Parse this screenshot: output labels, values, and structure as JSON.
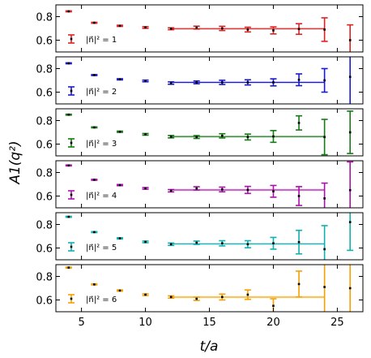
{
  "chart_data": {
    "type": "scatter",
    "xlabel": "t/a",
    "ylabel": "A1(q²)",
    "xlim": [
      3,
      27
    ],
    "ylim": [
      0.5,
      0.9
    ],
    "x_ticks": [
      "5",
      "10",
      "15",
      "20",
      "25"
    ],
    "y_ticks": [
      "0.6",
      "0.8"
    ],
    "panels": [
      {
        "label": "|n⃗|² = 1",
        "color": "#dd2222",
        "band": {
          "x": [
            12,
            24
          ],
          "center": 0.697,
          "half_width": 0.009
        },
        "points": [
          {
            "x": 4,
            "y": 0.845,
            "err": 0.004
          },
          {
            "x": 6,
            "y": 0.748,
            "err": 0.004
          },
          {
            "x": 8,
            "y": 0.722,
            "err": 0.005
          },
          {
            "x": 10,
            "y": 0.708,
            "err": 0.007
          },
          {
            "x": 12,
            "y": 0.697,
            "err": 0.008
          },
          {
            "x": 14,
            "y": 0.707,
            "err": 0.012
          },
          {
            "x": 16,
            "y": 0.7,
            "err": 0.018
          },
          {
            "x": 18,
            "y": 0.69,
            "err": 0.02
          },
          {
            "x": 20,
            "y": 0.683,
            "err": 0.03
          },
          {
            "x": 22,
            "y": 0.695,
            "err": 0.045
          },
          {
            "x": 24,
            "y": 0.69,
            "err": 0.1
          },
          {
            "x": 26,
            "y": 0.6,
            "err": 0.13
          }
        ]
      },
      {
        "label": "|n⃗|² = 2",
        "color": "#1a1acc",
        "band": {
          "x": [
            12,
            24
          ],
          "center": 0.683,
          "half_width": 0.009
        },
        "points": [
          {
            "x": 4,
            "y": 0.845,
            "err": 0.004
          },
          {
            "x": 6,
            "y": 0.745,
            "err": 0.004
          },
          {
            "x": 8,
            "y": 0.709,
            "err": 0.005
          },
          {
            "x": 10,
            "y": 0.695,
            "err": 0.007
          },
          {
            "x": 12,
            "y": 0.677,
            "err": 0.01
          },
          {
            "x": 14,
            "y": 0.683,
            "err": 0.012
          },
          {
            "x": 16,
            "y": 0.683,
            "err": 0.018
          },
          {
            "x": 18,
            "y": 0.683,
            "err": 0.022
          },
          {
            "x": 20,
            "y": 0.683,
            "err": 0.03
          },
          {
            "x": 22,
            "y": 0.705,
            "err": 0.05
          },
          {
            "x": 24,
            "y": 0.7,
            "err": 0.1
          },
          {
            "x": 26,
            "y": 0.73,
            "err": 0.24
          }
        ]
      },
      {
        "label": "|n⃗|² = 3",
        "color": "#167a16",
        "band": {
          "x": [
            12,
            24
          ],
          "center": 0.664,
          "half_width": 0.009
        },
        "points": [
          {
            "x": 4,
            "y": 0.85,
            "err": 0.004
          },
          {
            "x": 6,
            "y": 0.742,
            "err": 0.004
          },
          {
            "x": 8,
            "y": 0.705,
            "err": 0.005
          },
          {
            "x": 10,
            "y": 0.683,
            "err": 0.007
          },
          {
            "x": 12,
            "y": 0.663,
            "err": 0.01
          },
          {
            "x": 14,
            "y": 0.66,
            "err": 0.012
          },
          {
            "x": 16,
            "y": 0.67,
            "err": 0.018
          },
          {
            "x": 18,
            "y": 0.66,
            "err": 0.025
          },
          {
            "x": 20,
            "y": 0.665,
            "err": 0.05
          },
          {
            "x": 22,
            "y": 0.78,
            "err": 0.06
          },
          {
            "x": 24,
            "y": 0.66,
            "err": 0.15
          },
          {
            "x": 26,
            "y": 0.7,
            "err": 0.18
          }
        ]
      },
      {
        "label": "|n⃗|² = 4",
        "color": "#aa11aa",
        "band": {
          "x": [
            12,
            24
          ],
          "center": 0.652,
          "half_width": 0.009
        },
        "points": [
          {
            "x": 4,
            "y": 0.86,
            "err": 0.004
          },
          {
            "x": 6,
            "y": 0.738,
            "err": 0.004
          },
          {
            "x": 8,
            "y": 0.693,
            "err": 0.005
          },
          {
            "x": 10,
            "y": 0.665,
            "err": 0.007
          },
          {
            "x": 12,
            "y": 0.645,
            "err": 0.01
          },
          {
            "x": 14,
            "y": 0.665,
            "err": 0.014
          },
          {
            "x": 16,
            "y": 0.656,
            "err": 0.02
          },
          {
            "x": 18,
            "y": 0.652,
            "err": 0.03
          },
          {
            "x": 20,
            "y": 0.64,
            "err": 0.05
          },
          {
            "x": 22,
            "y": 0.6,
            "err": 0.08
          },
          {
            "x": 24,
            "y": 0.58,
            "err": 0.13
          },
          {
            "x": 26,
            "y": 0.65,
            "err": 0.24
          }
        ]
      },
      {
        "label": "|n⃗|² = 5",
        "color": "#10b0b0",
        "band": {
          "x": [
            12,
            24
          ],
          "center": 0.635,
          "half_width": 0.009
        },
        "points": [
          {
            "x": 4,
            "y": 0.865,
            "err": 0.004
          },
          {
            "x": 6,
            "y": 0.735,
            "err": 0.004
          },
          {
            "x": 8,
            "y": 0.682,
            "err": 0.005
          },
          {
            "x": 10,
            "y": 0.652,
            "err": 0.007
          },
          {
            "x": 12,
            "y": 0.632,
            "err": 0.01
          },
          {
            "x": 14,
            "y": 0.645,
            "err": 0.014
          },
          {
            "x": 16,
            "y": 0.64,
            "err": 0.022
          },
          {
            "x": 18,
            "y": 0.632,
            "err": 0.03
          },
          {
            "x": 20,
            "y": 0.64,
            "err": 0.05
          },
          {
            "x": 22,
            "y": 0.65,
            "err": 0.1
          },
          {
            "x": 24,
            "y": 0.59,
            "err": 0.2
          },
          {
            "x": 26,
            "y": 0.82,
            "err": 0.24
          }
        ]
      },
      {
        "label": "|n⃗|² = 6",
        "color": "#f5a000",
        "band": {
          "x": [
            12,
            24
          ],
          "center": 0.624,
          "half_width": 0.009
        },
        "points": [
          {
            "x": 4,
            "y": 0.875,
            "err": 0.004
          },
          {
            "x": 6,
            "y": 0.732,
            "err": 0.004
          },
          {
            "x": 8,
            "y": 0.68,
            "err": 0.005
          },
          {
            "x": 10,
            "y": 0.645,
            "err": 0.007
          },
          {
            "x": 12,
            "y": 0.625,
            "err": 0.01
          },
          {
            "x": 14,
            "y": 0.61,
            "err": 0.014
          },
          {
            "x": 16,
            "y": 0.625,
            "err": 0.025
          },
          {
            "x": 18,
            "y": 0.645,
            "err": 0.04
          },
          {
            "x": 20,
            "y": 0.55,
            "err": 0.06
          },
          {
            "x": 22,
            "y": 0.735,
            "err": 0.11
          },
          {
            "x": 24,
            "y": 0.71,
            "err": 0.24
          },
          {
            "x": 26,
            "y": 0.7,
            "err": 0.24
          }
        ]
      }
    ]
  }
}
